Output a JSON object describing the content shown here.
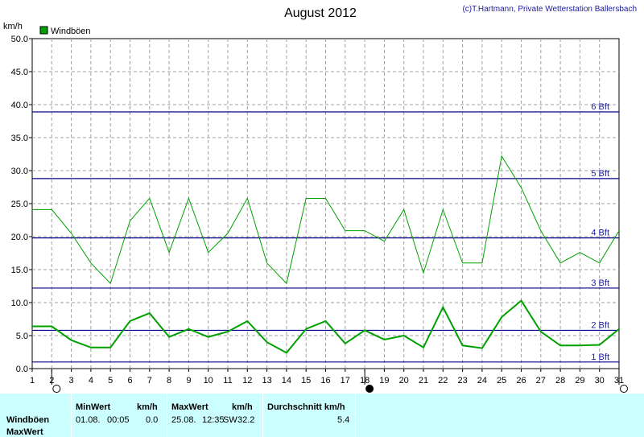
{
  "chart_data": {
    "type": "line",
    "title": "August 2012",
    "copyright": "(c)T.Hartmann, Private Wetterstation Ballersbach",
    "ylabel": "km/h",
    "ylim": [
      0,
      50
    ],
    "yticks": [
      "0.0",
      "5.0",
      "10.0",
      "15.0",
      "20.0",
      "25.0",
      "30.0",
      "35.0",
      "40.0",
      "45.0",
      "50.0"
    ],
    "x": [
      1,
      2,
      3,
      4,
      5,
      6,
      7,
      8,
      9,
      10,
      11,
      12,
      13,
      14,
      15,
      16,
      17,
      18,
      19,
      20,
      21,
      22,
      23,
      24,
      25,
      26,
      27,
      28,
      29,
      30,
      31
    ],
    "xlim": [
      1,
      31
    ],
    "grid": true,
    "legend": {
      "position": "top-left",
      "entries": [
        {
          "label": "Windböen",
          "color": "#00a000"
        }
      ]
    },
    "series": [
      {
        "name": "Windböen",
        "color": "#00a000",
        "width": 1,
        "values": [
          24.1,
          24.1,
          20.5,
          16.0,
          12.9,
          22.4,
          25.8,
          17.6,
          25.8,
          17.6,
          20.5,
          25.8,
          16.0,
          12.9,
          25.8,
          25.8,
          20.9,
          20.9,
          19.3,
          24.1,
          14.5,
          24.1,
          16.0,
          16.0,
          32.2,
          27.4,
          20.9,
          16.0,
          17.6,
          16.0,
          20.9
        ]
      },
      {
        "values": [
          6.4,
          6.4,
          4.3,
          3.2,
          3.2,
          7.2,
          8.4,
          4.8,
          6.0,
          4.8,
          5.6,
          7.2,
          4.0,
          2.4,
          6.0,
          7.2,
          3.8,
          5.8,
          4.4,
          5.0,
          3.2,
          9.3,
          3.5,
          3.1,
          7.8,
          10.3,
          5.6,
          3.5,
          3.5,
          3.6,
          6.0
        ],
        "color": "#00a000",
        "width": 2
      }
    ],
    "reference_lines": [
      {
        "label": "1 Bft",
        "value": 1.0
      },
      {
        "label": "2 Bft",
        "value": 5.8
      },
      {
        "label": "3 Bft",
        "value": 12.2
      },
      {
        "label": "4 Bft",
        "value": 19.8
      },
      {
        "label": "5 Bft",
        "value": 28.8
      },
      {
        "label": "6 Bft",
        "value": 38.9
      }
    ],
    "reference_color": "#00008b",
    "moon_markers": [
      {
        "day": 2,
        "phase": "full"
      },
      {
        "day": 18,
        "phase": "new"
      },
      {
        "day": 31,
        "phase": "full"
      }
    ]
  },
  "stats": {
    "row_labels": [
      "Windböen",
      "MaxWert"
    ],
    "min_header": "MinWert",
    "min_unit": "km/h",
    "min_date": "01.08.",
    "min_time": "00:05",
    "min_value": "0.0",
    "max_header": "MaxWert",
    "max_unit": "km/h",
    "max_date": "25.08.",
    "max_time": "12:35",
    "max_dir": "SW",
    "max_value": "32.2",
    "avg_header": "Durchschnitt km/h",
    "avg_value": "5.4"
  }
}
